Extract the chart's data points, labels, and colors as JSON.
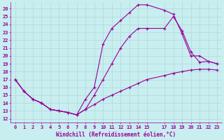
{
  "xlabel": "Windchill (Refroidissement éolien,°C)",
  "background_color": "#c8eef0",
  "grid_color": "#b0d8da",
  "line_color": "#990099",
  "xlim": [
    -0.5,
    23.5
  ],
  "ylim": [
    11.5,
    26.8
  ],
  "yticks": [
    12,
    13,
    14,
    15,
    16,
    17,
    18,
    19,
    20,
    21,
    22,
    23,
    24,
    25,
    26
  ],
  "xticks": [
    0,
    1,
    2,
    3,
    4,
    5,
    6,
    7,
    8,
    9,
    10,
    11,
    12,
    13,
    14,
    15,
    17,
    18,
    19,
    20,
    21,
    22,
    23
  ],
  "line1_x": [
    0,
    1,
    2,
    3,
    4,
    5,
    6,
    7,
    8,
    9,
    10,
    11,
    12,
    13,
    14,
    15,
    17,
    18,
    19,
    20,
    21,
    22,
    23
  ],
  "line1_y": [
    17.0,
    15.5,
    14.5,
    14.0,
    13.2,
    13.0,
    12.8,
    12.5,
    13.2,
    15.0,
    17.0,
    19.0,
    21.0,
    22.5,
    23.5,
    23.5,
    23.5,
    25.0,
    23.2,
    20.5,
    19.2,
    19.3,
    19.0
  ],
  "line2_x": [
    0,
    1,
    2,
    3,
    4,
    5,
    6,
    7,
    8,
    9,
    10,
    11,
    12,
    13,
    14,
    15,
    17,
    18,
    19,
    20,
    21,
    22,
    23
  ],
  "line2_y": [
    17.0,
    15.5,
    14.5,
    14.0,
    13.2,
    13.0,
    12.8,
    12.5,
    14.5,
    16.0,
    21.5,
    23.5,
    24.5,
    25.5,
    26.5,
    26.5,
    25.8,
    25.3,
    22.8,
    20.0,
    20.0,
    19.3,
    19.0
  ],
  "line3_x": [
    0,
    1,
    2,
    3,
    4,
    5,
    6,
    7,
    8,
    9,
    10,
    11,
    12,
    13,
    14,
    15,
    17,
    18,
    19,
    20,
    21,
    22,
    23
  ],
  "line3_y": [
    17.0,
    15.5,
    14.5,
    14.0,
    13.2,
    13.0,
    12.8,
    12.5,
    13.2,
    13.8,
    14.5,
    15.0,
    15.5,
    16.0,
    16.5,
    17.0,
    17.5,
    17.8,
    18.0,
    18.2,
    18.3,
    18.3,
    18.2
  ]
}
